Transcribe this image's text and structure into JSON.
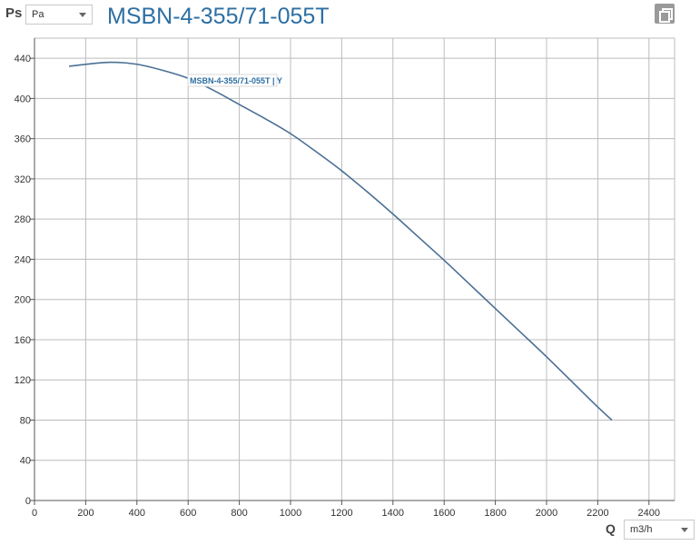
{
  "header": {
    "ps_label": "Ps",
    "ps_unit": "Pa",
    "title": "MSBN-4-355/71-055T",
    "q_label": "Q",
    "q_unit": "m3/h"
  },
  "colors": {
    "curve": "#4a6f94",
    "grid": "#bcbcbc",
    "axis": "#555555",
    "title": "#2d6fa3"
  },
  "chart_data": {
    "type": "line",
    "title": "MSBN-4-355/71-055T",
    "xlabel": "Q",
    "ylabel": "Ps",
    "xlim": [
      0,
      2500
    ],
    "ylim": [
      0,
      460
    ],
    "x_ticks": [
      0,
      200,
      400,
      600,
      800,
      1000,
      1200,
      1400,
      1600,
      1800,
      2000,
      2200,
      2400
    ],
    "y_ticks": [
      0,
      40,
      80,
      120,
      160,
      200,
      240,
      280,
      320,
      360,
      400,
      440
    ],
    "grid": true,
    "series": [
      {
        "name": "MSBN-4-355/71-055T | Y",
        "x": [
          135,
          200,
          300,
          400,
          500,
          600,
          700,
          800,
          900,
          1000,
          1100,
          1200,
          1300,
          1400,
          1500,
          1600,
          1700,
          1800,
          1900,
          2000,
          2100,
          2200,
          2255
        ],
        "y": [
          432,
          434,
          436,
          434,
          428,
          420,
          408,
          394,
          380,
          365,
          347,
          328,
          307,
          285,
          262,
          239,
          215,
          191,
          167,
          143,
          118,
          93,
          80
        ]
      }
    ]
  }
}
